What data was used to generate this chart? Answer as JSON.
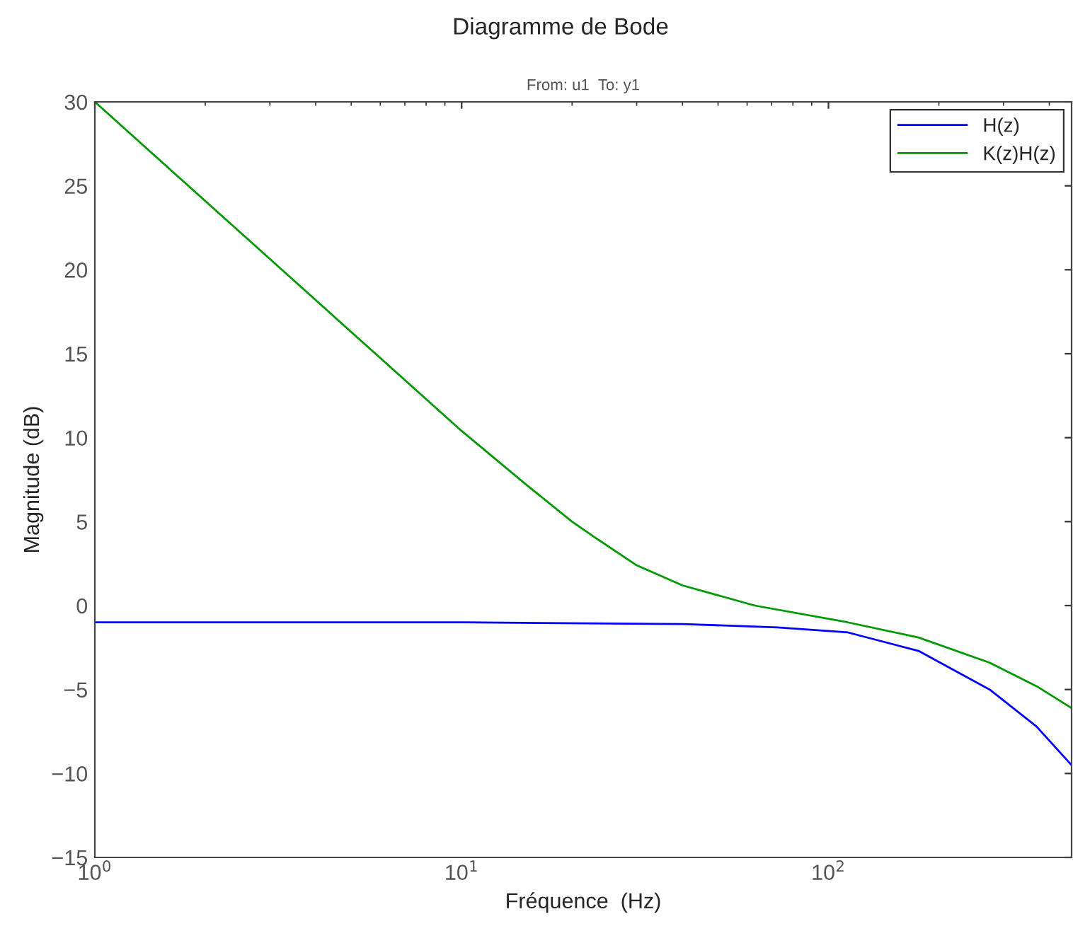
{
  "chart_data": {
    "type": "line",
    "title": "Diagramme de Bode",
    "subtitle": "From: u1  To: y1",
    "xlabel": "Fréquence  (Hz)",
    "ylabel": "Magnitude (dB)",
    "log": "x",
    "xlim": [
      1,
      460
    ],
    "ylim": [
      -15,
      30
    ],
    "xticks": [
      {
        "value": 1,
        "label": "10$^{0}$"
      },
      {
        "value": 10,
        "label": "10$^{1}$"
      },
      {
        "value": 100,
        "label": "10$^{2}$"
      }
    ],
    "yticks": [
      {
        "value": -15,
        "label": "−15"
      },
      {
        "value": -10,
        "label": "−10"
      },
      {
        "value": -5,
        "label": "−5"
      },
      0,
      5,
      10,
      15,
      20,
      25,
      30
    ],
    "grid": false,
    "legend": "top right",
    "series": [
      {
        "name": "H(z)",
        "color": "#0000ff",
        "x": [
          1,
          10,
          40,
          72.6,
          113,
          176,
          275,
          369,
          460
        ],
        "values": [
          -1.0,
          -1.0,
          -1.1,
          -1.3,
          -1.6,
          -2.7,
          -5.0,
          -7.2,
          -9.5
        ]
      },
      {
        "name": "K(z)H(z)",
        "color": "#009900",
        "x": [
          1,
          3.16,
          10,
          15,
          20,
          23.3,
          30,
          40,
          63,
          113,
          176,
          275,
          369,
          460
        ],
        "values": [
          30,
          20.2,
          10.4,
          7.2,
          5.0,
          4.0,
          2.4,
          1.2,
          0.0,
          -1.0,
          -1.9,
          -3.4,
          -4.8,
          -6.1
        ]
      }
    ]
  }
}
